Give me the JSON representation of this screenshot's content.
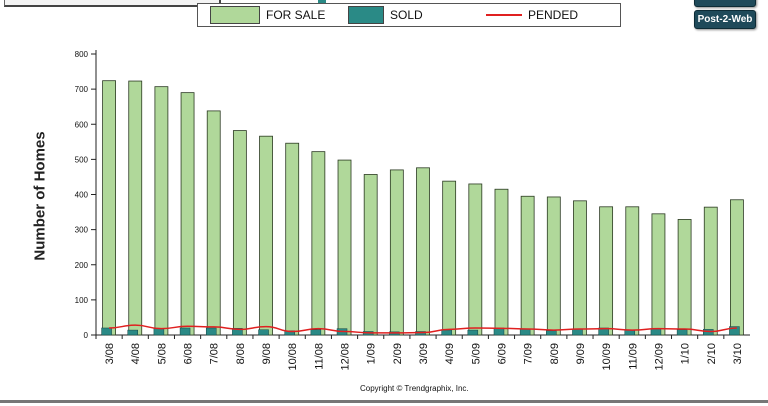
{
  "legend": {
    "for_sale": "FOR SALE",
    "sold": "SOLD",
    "pended": "PENDED"
  },
  "buttons": {
    "post_to_web": "Post-2-Web"
  },
  "copyright": "Copyright © Trendgraphix, Inc.",
  "colors": {
    "for_sale": "#b0d89a",
    "sold": "#2a8a86",
    "pended": "#e02020"
  },
  "chart_data": {
    "type": "bar",
    "categories": [
      "3/08",
      "4/08",
      "5/08",
      "6/08",
      "7/08",
      "8/08",
      "9/08",
      "10/08",
      "11/08",
      "12/08",
      "1/09",
      "2/09",
      "3/09",
      "4/09",
      "5/09",
      "6/09",
      "7/09",
      "8/09",
      "9/09",
      "10/09",
      "11/09",
      "12/09",
      "1/10",
      "2/10",
      "3/10"
    ],
    "series": [
      {
        "name": "FOR SALE",
        "type": "bar",
        "values": [
          724,
          723,
          707,
          690,
          638,
          582,
          566,
          546,
          522,
          498,
          457,
          470,
          476,
          438,
          430,
          415,
          395,
          393,
          382,
          365,
          365,
          345,
          329,
          364,
          385
        ]
      },
      {
        "name": "SOLD",
        "type": "bar",
        "values": [
          20,
          14,
          19,
          20,
          20,
          19,
          15,
          12,
          15,
          18,
          10,
          9,
          10,
          14,
          14,
          20,
          17,
          12,
          17,
          20,
          15,
          17,
          15,
          16,
          24
        ]
      },
      {
        "name": "PENDED",
        "type": "line",
        "values": [
          20,
          28,
          18,
          25,
          23,
          16,
          24,
          10,
          18,
          10,
          6,
          6,
          7,
          16,
          20,
          19,
          17,
          14,
          17,
          18,
          14,
          18,
          17,
          10,
          20
        ]
      }
    ],
    "title": "",
    "xlabel": "",
    "ylabel": "Number of Homes",
    "ylim": [
      0,
      800
    ],
    "yticks": [
      0,
      100,
      200,
      300,
      400,
      500,
      600,
      700,
      800
    ],
    "grid": false,
    "legend_position": "top"
  }
}
